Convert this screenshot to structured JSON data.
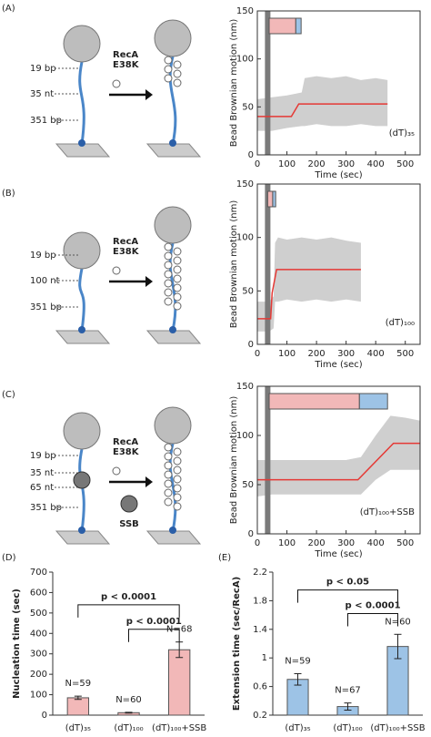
{
  "panels": [
    "(A)",
    "(B)",
    "(C)",
    "(D)",
    "(E)"
  ],
  "diagrams": [
    {
      "labels": [
        "19 bp",
        "35 nt",
        "351 bp"
      ],
      "protein": [
        "RecA",
        "E38K"
      ]
    },
    {
      "labels": [
        "19 bp",
        "100 nt",
        "351 bp"
      ],
      "protein": [
        "RecA",
        "E38K"
      ]
    },
    {
      "labels": [
        "19 bp",
        "35 nt",
        "65 nt",
        "351 bp"
      ],
      "protein": [
        "RecA",
        "E38K"
      ],
      "extra": "SSB"
    }
  ],
  "chart_data": [
    {
      "type": "line",
      "xlabel": "Time (sec)",
      "ylabel": "Bead Brownian motion (nm)",
      "xlim": [
        0,
        550
      ],
      "xticks": [
        0,
        100,
        200,
        300,
        400,
        500
      ],
      "ylim": [
        0,
        150
      ],
      "yticks": [
        0,
        50,
        100,
        150
      ],
      "label": "(dT)₃₅",
      "band": {
        "color": "#cfcfcf",
        "x": [
          0,
          50,
          100,
          150,
          160,
          200,
          250,
          300,
          350,
          400,
          440
        ],
        "lower": [
          25,
          25,
          28,
          30,
          30,
          32,
          30,
          30,
          32,
          30,
          30
        ],
        "upper": [
          58,
          60,
          62,
          65,
          80,
          82,
          80,
          82,
          78,
          80,
          78
        ]
      },
      "fit": {
        "color": "#e53935",
        "x": [
          0,
          115,
          140,
          440
        ],
        "values": [
          40,
          40,
          53,
          53
        ]
      },
      "marker": {
        "x": 35,
        "color": "#7a7a7a"
      },
      "segments": [
        {
          "color": "#f2b8b8",
          "start": 40,
          "end": 130
        },
        {
          "color": "#9dc3e6",
          "start": 130,
          "end": 148
        }
      ]
    },
    {
      "type": "line",
      "xlabel": "Time (sec)",
      "ylabel": "Bead Brownian motion (nm)",
      "xlim": [
        0,
        550
      ],
      "xticks": [
        0,
        100,
        200,
        300,
        400,
        500
      ],
      "ylim": [
        0,
        150
      ],
      "yticks": [
        0,
        50,
        100,
        150
      ],
      "label": "(dT)₁₀₀",
      "band": {
        "color": "#cfcfcf",
        "x": [
          0,
          40,
          55,
          60,
          70,
          100,
          150,
          200,
          250,
          300,
          350
        ],
        "lower": [
          12,
          12,
          15,
          40,
          40,
          42,
          40,
          42,
          40,
          42,
          40
        ],
        "upper": [
          40,
          40,
          45,
          95,
          100,
          98,
          100,
          98,
          100,
          97,
          95
        ]
      },
      "fit": {
        "color": "#e53935",
        "x": [
          0,
          45,
          50,
          65,
          350
        ],
        "values": [
          24,
          24,
          48,
          70,
          70
        ]
      },
      "marker": {
        "x": 35,
        "color": "#7a7a7a"
      },
      "segments": [
        {
          "color": "#f2b8b8",
          "start": 35,
          "end": 52
        },
        {
          "color": "#9dc3e6",
          "start": 52,
          "end": 62
        }
      ]
    },
    {
      "type": "line",
      "xlabel": "Time (sec)",
      "ylabel": "Bead Brownian motion (nm)",
      "xlim": [
        0,
        550
      ],
      "xticks": [
        0,
        100,
        200,
        300,
        400,
        500
      ],
      "ylim": [
        0,
        150
      ],
      "yticks": [
        0,
        50,
        100,
        150
      ],
      "label": "(dT)₁₀₀+SSB",
      "band": {
        "color": "#cfcfcf",
        "x": [
          0,
          50,
          100,
          150,
          200,
          250,
          300,
          350,
          400,
          450,
          500,
          550
        ],
        "lower": [
          38,
          40,
          40,
          40,
          40,
          40,
          40,
          40,
          55,
          65,
          65,
          65
        ],
        "upper": [
          75,
          75,
          75,
          75,
          75,
          75,
          75,
          78,
          100,
          120,
          118,
          115
        ]
      },
      "fit": {
        "color": "#e53935",
        "x": [
          0,
          340,
          460,
          550
        ],
        "values": [
          55,
          55,
          92,
          92
        ]
      },
      "marker": {
        "x": 35,
        "color": "#7a7a7a"
      },
      "segments": [
        {
          "color": "#f2b8b8",
          "start": 40,
          "end": 345
        },
        {
          "color": "#9dc3e6",
          "start": 345,
          "end": 440
        }
      ]
    },
    {
      "type": "bar",
      "ylabel": "Nucleation time (sec)",
      "categories": [
        "(dT)₃₅",
        "(dT)₁₀₀",
        "(dT)₁₀₀+SSB"
      ],
      "values": [
        85,
        12,
        320
      ],
      "errors": [
        8,
        2,
        38
      ],
      "annotations": [
        "N=59",
        "N=60",
        "N=68"
      ],
      "color": "#f2b8b8",
      "ylim": [
        0,
        700
      ],
      "yticks": [
        0,
        100,
        200,
        300,
        400,
        500,
        600,
        700
      ],
      "comparisons": [
        {
          "from": 0,
          "to": 2,
          "y": 540,
          "label": "p < 0.0001"
        },
        {
          "from": 1,
          "to": 2,
          "y": 420,
          "label": "p < 0.0001"
        }
      ]
    },
    {
      "type": "bar",
      "ylabel": "Extension time (sec/RecA)",
      "categories": [
        "(dT)₃₅",
        "(dT)₁₀₀",
        "(dT)₁₀₀+SSB"
      ],
      "values": [
        0.7,
        0.32,
        1.16
      ],
      "errors": [
        0.08,
        0.05,
        0.17
      ],
      "annotations": [
        "N=59",
        "N=67",
        "N=60"
      ],
      "color": "#9dc3e6",
      "ylim": [
        0.2,
        2.2
      ],
      "yticks": [
        0.2,
        0.6,
        1,
        1.4,
        1.8,
        2.2
      ],
      "comparisons": [
        {
          "from": 0,
          "to": 2,
          "y": 1.95,
          "label": "p < 0.05"
        },
        {
          "from": 1,
          "to": 2,
          "y": 1.62,
          "label": "p < 0.0001"
        }
      ]
    }
  ]
}
